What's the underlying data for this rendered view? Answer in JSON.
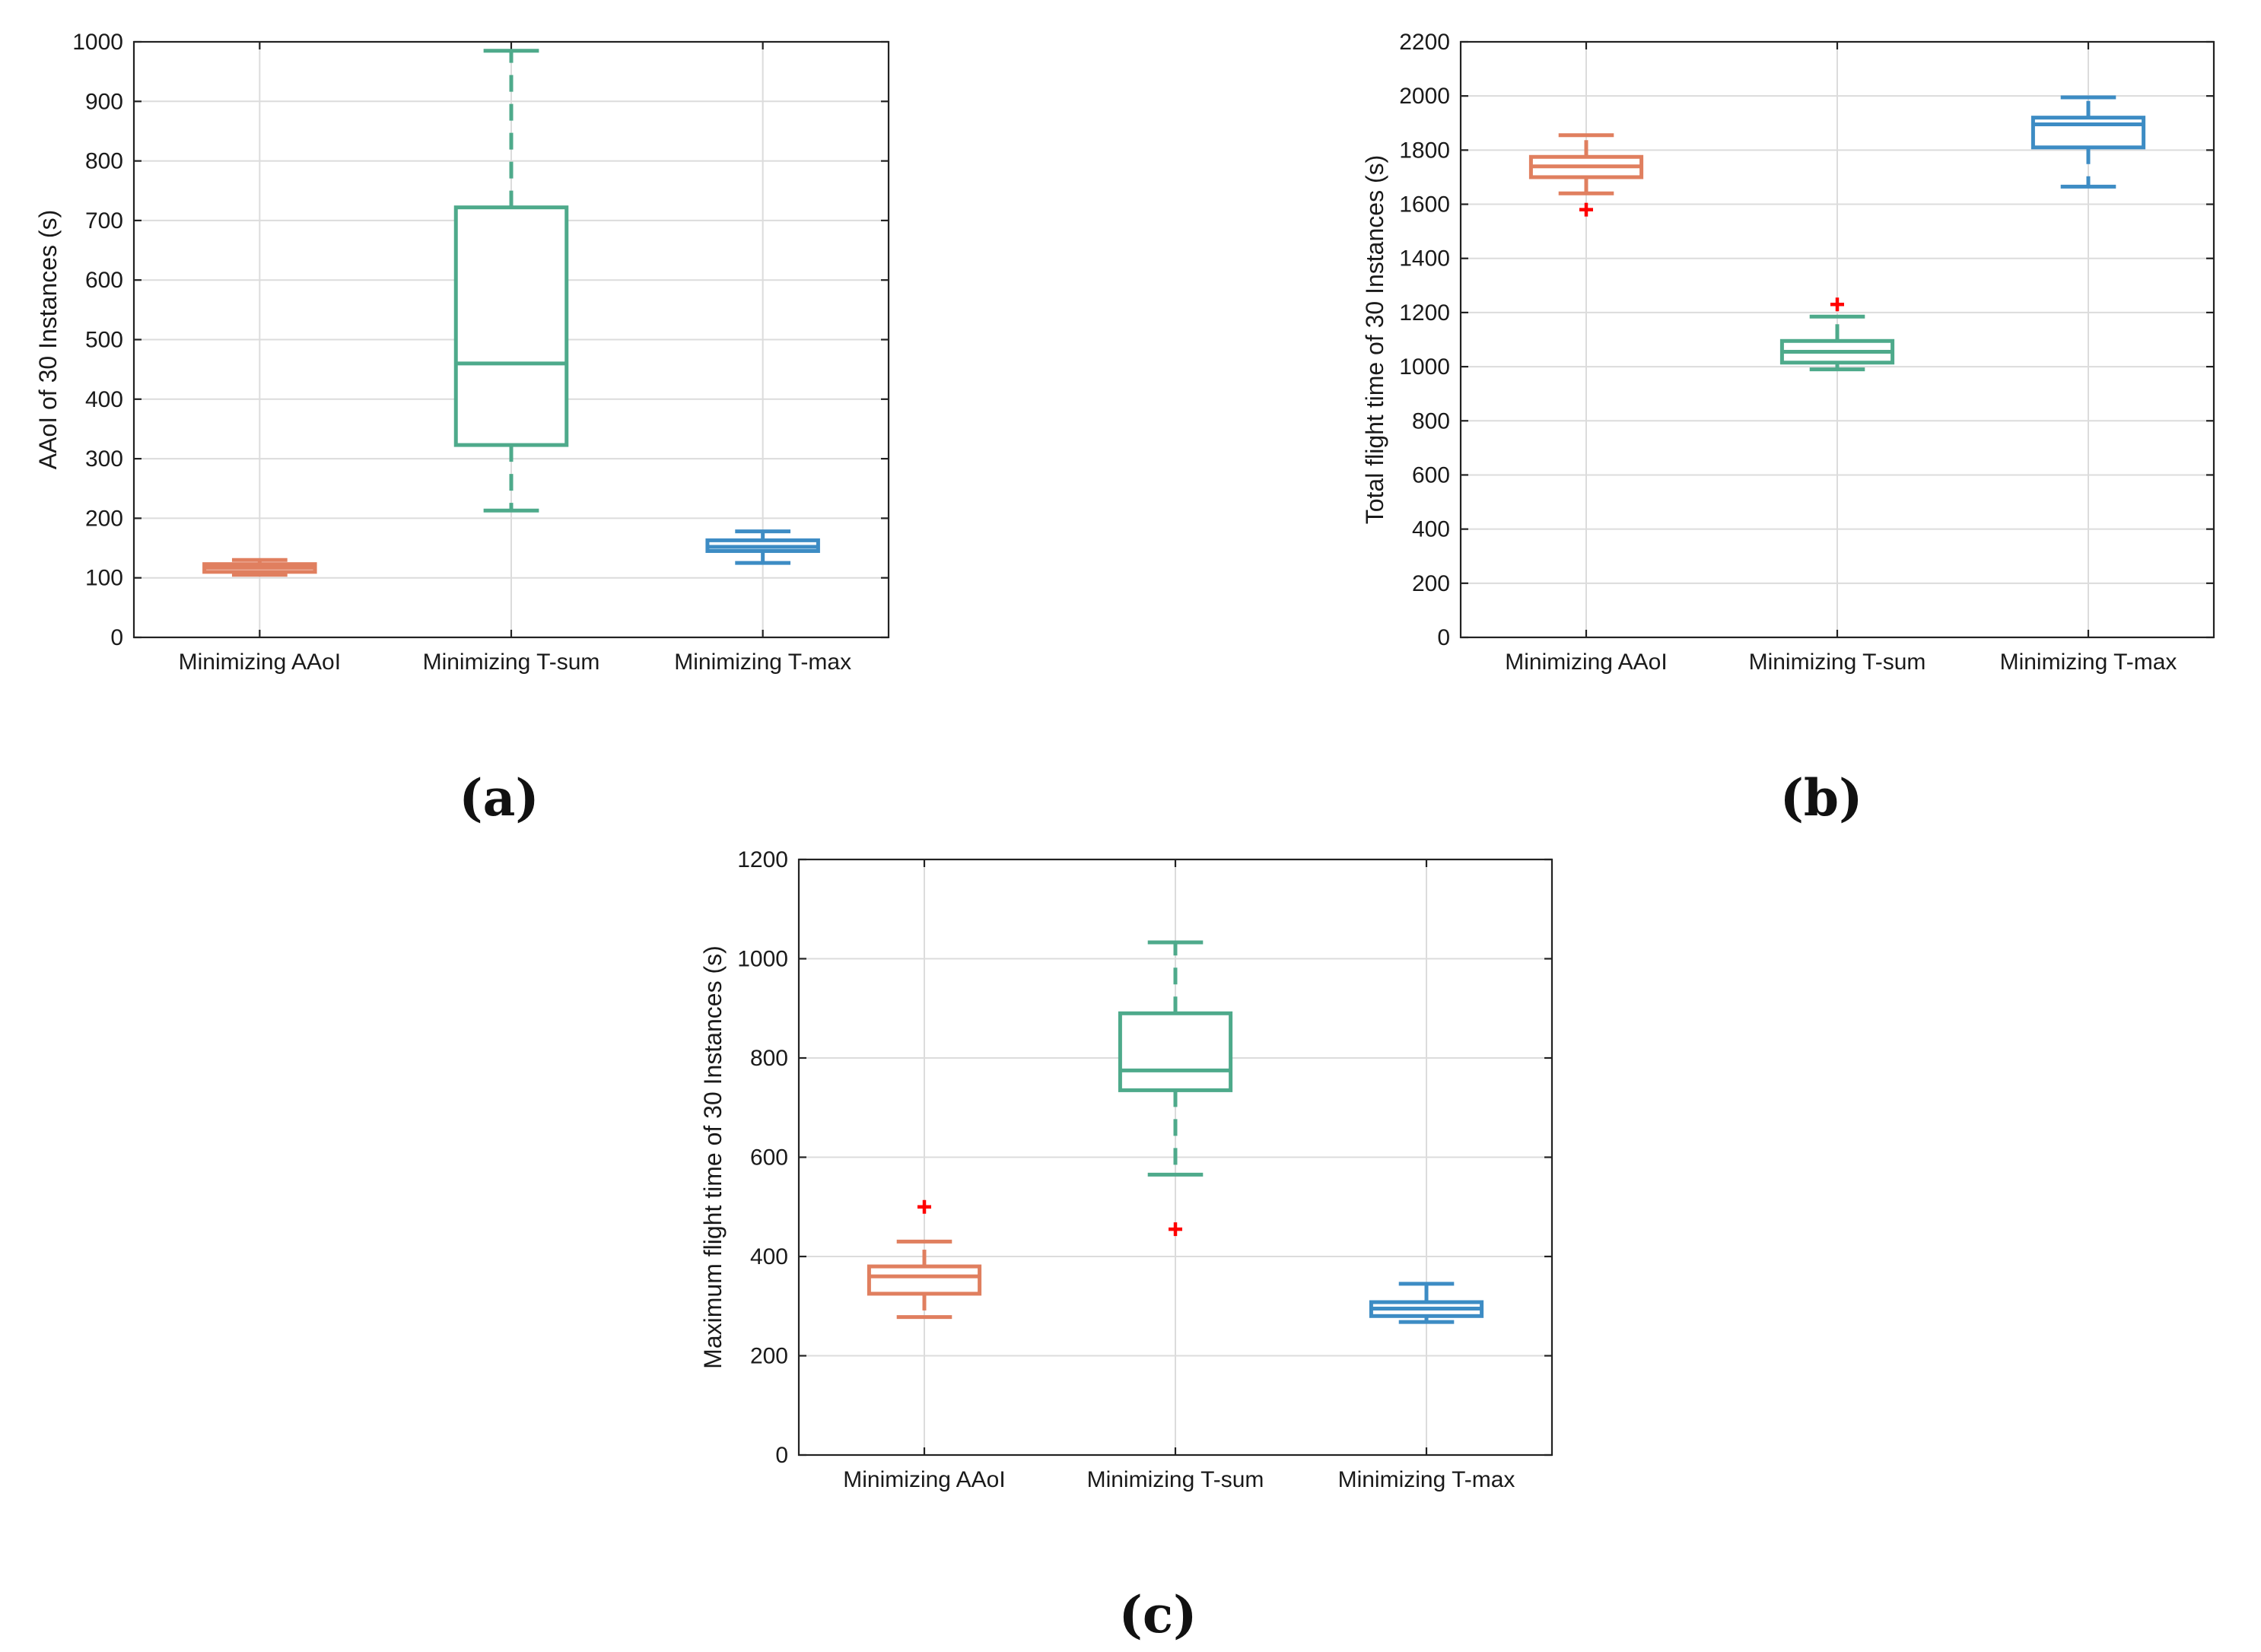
{
  "figure": {
    "panel_labels": [
      "(a)",
      "(b)",
      "(c)"
    ]
  },
  "colors": {
    "Minimizing AAoI": "#E07F5F",
    "Minimizing T-sum": "#4EAA8B",
    "Minimizing T-max": "#3D8CC4",
    "outlier": "#FF0000"
  },
  "chart_data": [
    {
      "panel": "(a)",
      "type": "box",
      "title": "",
      "xlabel": "",
      "ylabel": "AAoI of 30 Instances (s)",
      "ylim": [
        0,
        1000
      ],
      "yticks": [
        0,
        100,
        200,
        300,
        400,
        500,
        600,
        700,
        800,
        900,
        1000
      ],
      "grid": true,
      "categories": [
        "Minimizing AAoI",
        "Minimizing T-sum",
        "Minimizing T-max"
      ],
      "boxes": [
        {
          "name": "Minimizing AAoI",
          "whisker_low": 105,
          "q1": 110,
          "median": 117,
          "q3": 123,
          "whisker_high": 130,
          "outliers": []
        },
        {
          "name": "Minimizing T-sum",
          "whisker_low": 213,
          "q1": 323,
          "median": 460,
          "q3": 722,
          "whisker_high": 985,
          "outliers": []
        },
        {
          "name": "Minimizing T-max",
          "whisker_low": 125,
          "q1": 145,
          "median": 152,
          "q3": 163,
          "whisker_high": 178,
          "outliers": []
        }
      ]
    },
    {
      "panel": "(b)",
      "type": "box",
      "title": "",
      "xlabel": "",
      "ylabel": "Total flight time of 30 Instances (s)",
      "ylim": [
        0,
        2200
      ],
      "yticks": [
        0,
        200,
        400,
        600,
        800,
        1000,
        1200,
        1400,
        1600,
        1800,
        2000,
        2200
      ],
      "grid": true,
      "categories": [
        "Minimizing AAoI",
        "Minimizing T-sum",
        "Minimizing T-max"
      ],
      "boxes": [
        {
          "name": "Minimizing AAoI",
          "whisker_low": 1640,
          "q1": 1700,
          "median": 1740,
          "q3": 1775,
          "whisker_high": 1855,
          "outliers": [
            1580
          ]
        },
        {
          "name": "Minimizing T-sum",
          "whisker_low": 990,
          "q1": 1015,
          "median": 1055,
          "q3": 1095,
          "whisker_high": 1185,
          "outliers": [
            1230
          ]
        },
        {
          "name": "Minimizing T-max",
          "whisker_low": 1665,
          "q1": 1810,
          "median": 1895,
          "q3": 1920,
          "whisker_high": 1995,
          "outliers": []
        }
      ]
    },
    {
      "panel": "(c)",
      "type": "box",
      "title": "",
      "xlabel": "",
      "ylabel": "Maximum flight time of 30 Instances (s)",
      "ylim": [
        0,
        1200
      ],
      "yticks": [
        0,
        200,
        400,
        600,
        800,
        1000,
        1200
      ],
      "grid": true,
      "categories": [
        "Minimizing AAoI",
        "Minimizing T-sum",
        "Minimizing T-max"
      ],
      "boxes": [
        {
          "name": "Minimizing AAoI",
          "whisker_low": 278,
          "q1": 325,
          "median": 360,
          "q3": 380,
          "whisker_high": 430,
          "outliers": [
            500
          ]
        },
        {
          "name": "Minimizing T-sum",
          "whisker_low": 565,
          "q1": 735,
          "median": 775,
          "q3": 890,
          "whisker_high": 1033,
          "outliers": [
            455
          ]
        },
        {
          "name": "Minimizing T-max",
          "whisker_low": 268,
          "q1": 280,
          "median": 295,
          "q3": 308,
          "whisker_high": 345,
          "outliers": []
        }
      ]
    }
  ]
}
